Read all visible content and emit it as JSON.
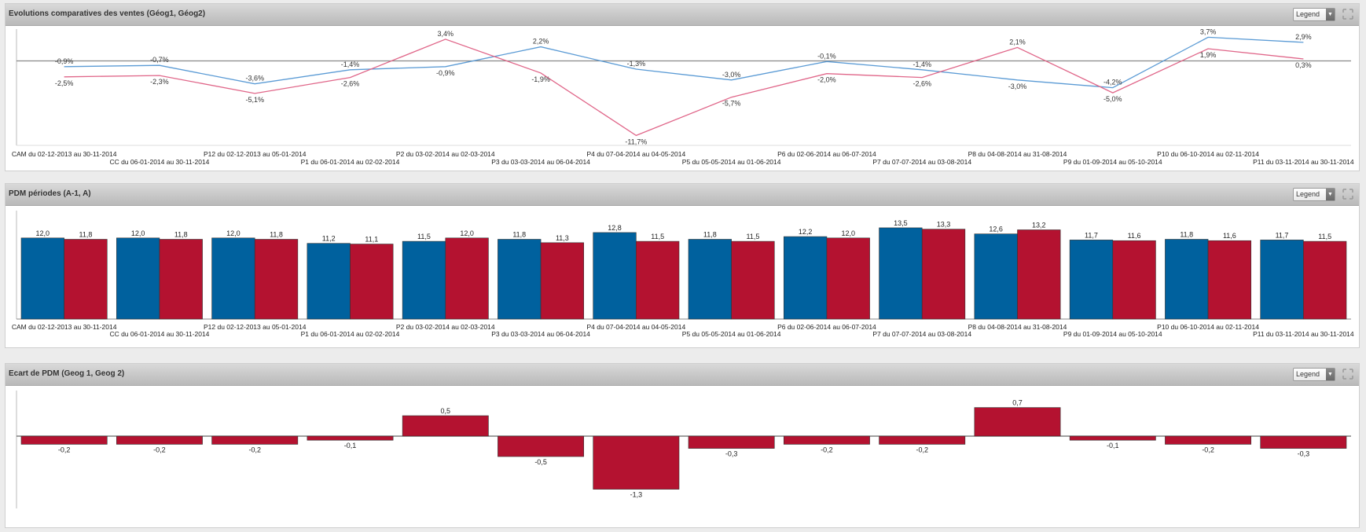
{
  "panels": [
    {
      "title": "Evolutions comparatives des ventes (Géog1, Géog2)",
      "legend_label": "Legend"
    },
    {
      "title": "PDM périodes (A-1, A)",
      "legend_label": "Legend"
    },
    {
      "title": "Ecart de PDM (Geog 1, Geog 2)",
      "legend_label": "Legend"
    }
  ],
  "colors": {
    "blue": "#5b9bd5",
    "pink": "#e06689",
    "bar_blue": "#00619e",
    "bar_red": "#b41230"
  },
  "categories": [
    "CAM du 02-12-2013 au 30-11-2014",
    "CC du 06-01-2014 au 30-11-2014",
    "P12 du 02-12-2013 au 05-01-2014",
    "P1 du 06-01-2014 au 02-02-2014",
    "P2 du 03-02-2014 au 02-03-2014",
    "P3 du 03-03-2014 au 06-04-2014",
    "P4 du 07-04-2014 au 04-05-2014",
    "P5 du 05-05-2014 au 01-06-2014",
    "P6 du 02-06-2014 au 06-07-2014",
    "P7 du 07-07-2014 au 03-08-2014",
    "P8 du 04-08-2014 au 31-08-2014",
    "P9 du 01-09-2014 au 05-10-2014",
    "P10 du 06-10-2014 au 02-11-2014",
    "P11 du 03-11-2014 au 30-11-2014"
  ],
  "chart_data": [
    {
      "type": "line",
      "title": "Evolutions comparatives des ventes (Géog1, Géog2)",
      "series": [
        {
          "color": "#5b9bd5",
          "values": [
            -0.9,
            -0.7,
            -3.6,
            -1.4,
            -0.9,
            2.2,
            -1.3,
            -3.0,
            -0.1,
            -1.4,
            -3.0,
            -4.2,
            3.7,
            2.9
          ],
          "labels": [
            "-0,9%",
            "-0,7%",
            "-3,6%",
            "-1,4%",
            "-0,9%",
            "2,2%",
            "-1,3%",
            "-3,0%",
            "-0,1%",
            "-1,4%",
            "-3,0%",
            "-4,2%",
            "3,7%",
            "2,9%"
          ]
        },
        {
          "color": "#e06689",
          "values": [
            -2.5,
            -2.3,
            -5.1,
            -2.6,
            3.4,
            -1.9,
            -11.7,
            -5.7,
            -2.0,
            -2.6,
            2.1,
            -5.0,
            1.9,
            0.3
          ],
          "labels": [
            "-2,5%",
            "-2,3%",
            "-5,1%",
            "-2,6%",
            "3,4%",
            "-1,9%",
            "-11,7%",
            "-5,7%",
            "-2,0%",
            "-2,6%",
            "2,1%",
            "-5,0%",
            "1,9%",
            "0,3%"
          ]
        }
      ]
    },
    {
      "type": "bar",
      "title": "PDM périodes (A-1, A)",
      "series": [
        {
          "color": "#00619e",
          "values": [
            12.0,
            12.0,
            12.0,
            11.2,
            11.5,
            11.8,
            12.8,
            11.8,
            12.2,
            13.5,
            12.6,
            11.7,
            11.8,
            11.7
          ],
          "labels": [
            "12,0",
            "12,0",
            "12,0",
            "11,2",
            "11,5",
            "11,8",
            "12,8",
            "11,8",
            "12,2",
            "13,5",
            "12,6",
            "11,7",
            "11,8",
            "11,7"
          ]
        },
        {
          "color": "#b41230",
          "values": [
            11.8,
            11.8,
            11.8,
            11.1,
            12.0,
            11.3,
            11.5,
            11.5,
            12.0,
            13.3,
            13.2,
            11.6,
            11.6,
            11.5
          ],
          "labels": [
            "11,8",
            "11,8",
            "11,8",
            "11,1",
            "12,0",
            "11,3",
            "11,5",
            "11,5",
            "12,0",
            "13,3",
            "13,2",
            "11,6",
            "11,6",
            "11,5"
          ]
        }
      ],
      "ylim": [
        0,
        14
      ]
    },
    {
      "type": "bar",
      "title": "Ecart de PDM (Geog 1, Geog 2)",
      "series": [
        {
          "color": "#b41230",
          "values": [
            -0.2,
            -0.2,
            -0.2,
            -0.1,
            0.5,
            -0.5,
            -1.3,
            -0.3,
            -0.2,
            -0.2,
            0.7,
            -0.1,
            -0.2,
            -0.3
          ],
          "labels": [
            "-0,2",
            "-0,2",
            "-0,2",
            "-0,1",
            "0,5",
            "-0,5",
            "-1,3",
            "-0,3",
            "-0,2",
            "-0,2",
            "0,7",
            "-0,1",
            "-0,2",
            "-0,3"
          ]
        }
      ],
      "ylim": [
        -1.3,
        0.7
      ]
    }
  ]
}
